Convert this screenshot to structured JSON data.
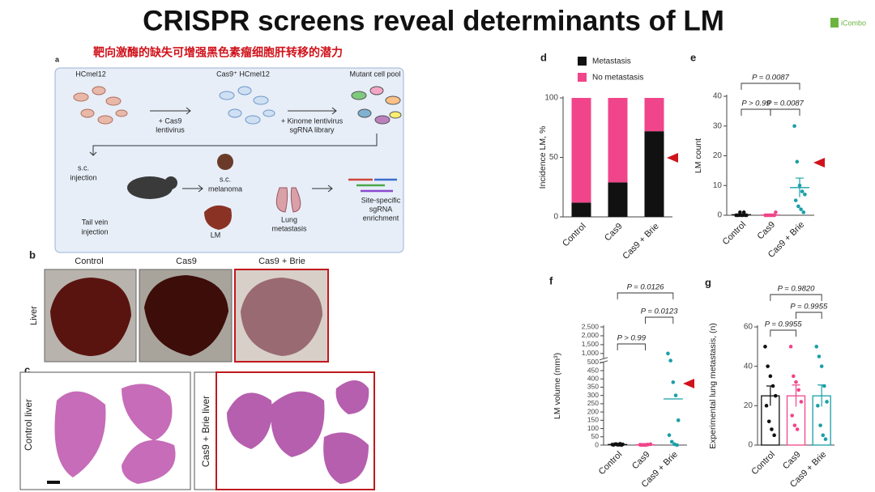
{
  "title": "CRISPR screens reveal determinants of LM",
  "logo": "iCombo",
  "subtitle": "靶向激酶的缺失可增强黑色素瘤细胞肝转移的潜力",
  "panel_a": {
    "label": "a",
    "items": [
      {
        "lines": [
          "HCmel12"
        ]
      },
      {
        "lines": [
          "Cas9⁺ HCmel12"
        ]
      },
      {
        "lines": [
          "Mutant cell pool"
        ]
      },
      {
        "lines": [
          "+ Cas9",
          "lentivirus"
        ]
      },
      {
        "lines": [
          "+ Kinome lentivirus",
          "sgRNA library"
        ]
      },
      {
        "lines": [
          "s.c.",
          "injection"
        ]
      },
      {
        "lines": [
          "s.c.",
          "melanoma"
        ]
      },
      {
        "lines": [
          "Site-specific",
          "sgRNA",
          "enrichment"
        ]
      },
      {
        "lines": [
          "Lung",
          "metastasis"
        ]
      },
      {
        "lines": [
          "LM"
        ]
      },
      {
        "lines": [
          "Tail vein",
          "injection"
        ]
      }
    ]
  },
  "panel_b": {
    "label": "b",
    "columns": [
      "Control",
      "Cas9",
      "Cas9 + Brie"
    ],
    "row_label": "Liver"
  },
  "panel_c": {
    "label": "c",
    "images": [
      "Control liver",
      "Cas9 + Brie liver"
    ]
  },
  "chart_data": [
    {
      "type": "stacked_bar",
      "label": "d",
      "ylabel": "Incidence LM, %",
      "categories": [
        "Control",
        "Cas9",
        "Cas9 + Brie"
      ],
      "series": [
        {
          "name": "Metastasis",
          "color": "#111111",
          "values": [
            12,
            29,
            72
          ]
        },
        {
          "name": "No metastasis",
          "color": "#f0458a",
          "values": [
            88,
            71,
            28
          ]
        }
      ],
      "ylim": [
        0,
        100
      ],
      "yticks": [
        0,
        50,
        100
      ]
    },
    {
      "type": "dot",
      "label": "e",
      "ylabel": "LM count",
      "categories": [
        "Control",
        "Cas9",
        "Cas9 + Brie"
      ],
      "colors": [
        "#111111",
        "#f0458a",
        "#1a9fa8"
      ],
      "points": [
        [
          0,
          0,
          0,
          1,
          0,
          0,
          1,
          0,
          0
        ],
        [
          0,
          0,
          0,
          0,
          1,
          0,
          0,
          0,
          0
        ],
        [
          30,
          18,
          10,
          8,
          7,
          5,
          3,
          2,
          1
        ]
      ],
      "means": [
        0.2,
        0.1,
        9.3
      ],
      "errors": [
        0.1,
        0.1,
        3.2
      ],
      "ylim": [
        0,
        40
      ],
      "yticks": [
        0,
        10,
        20,
        30,
        40
      ],
      "annotations": [
        "P = 0.0087",
        "P > 0.99",
        "P = 0.0087"
      ]
    },
    {
      "type": "dot",
      "label": "f",
      "ylabel": "LM volume (mm³)",
      "categories": [
        "Control",
        "Cas9",
        "Cas9 + Brie"
      ],
      "colors": [
        "#111111",
        "#f0458a",
        "#1a9fa8"
      ],
      "points": [
        [
          3,
          5,
          2,
          8,
          4,
          1,
          6,
          2,
          0
        ],
        [
          2,
          1,
          0,
          3,
          5,
          0,
          1,
          2
        ],
        [
          1000,
          600,
          380,
          300,
          150,
          60,
          20,
          5,
          0
        ]
      ],
      "means": [
        3.4,
        1.8,
        279
      ],
      "ylim": [
        0,
        2500
      ],
      "ybreak": 500,
      "yticks": [
        0,
        50,
        100,
        150,
        200,
        250,
        300,
        350,
        400,
        450,
        500,
        {
          "value": 1000,
          "label": "1,000"
        },
        {
          "value": 1500,
          "label": "1,500"
        },
        {
          "value": 2000,
          "label": "2,000"
        },
        {
          "value": 2500,
          "label": "2,500"
        }
      ],
      "annotations": [
        "P = 0.0126",
        "P = 0.0123",
        "P > 0.99"
      ]
    },
    {
      "type": "dot_bar",
      "label": "g",
      "ylabel": "Experimental lung metastasis, (n)",
      "categories": [
        "Control",
        "Cas9",
        "Cas9 + Brie"
      ],
      "colors": [
        "#111111",
        "#f0458a",
        "#1a9fa8"
      ],
      "points": [
        [
          50,
          40,
          35,
          30,
          25,
          20,
          12,
          8,
          5
        ],
        [
          50,
          35,
          32,
          28,
          22,
          15,
          10,
          8
        ],
        [
          50,
          45,
          40,
          30,
          22,
          20,
          10,
          5,
          3
        ]
      ],
      "means": [
        25,
        25,
        25
      ],
      "errors": [
        5,
        5.5,
        5.5
      ],
      "ylim": [
        0,
        60
      ],
      "yticks": [
        0,
        20,
        40,
        60
      ],
      "annotations": [
        "P = 0.9820",
        "P = 0.9955",
        "P = 0.9955"
      ]
    }
  ]
}
